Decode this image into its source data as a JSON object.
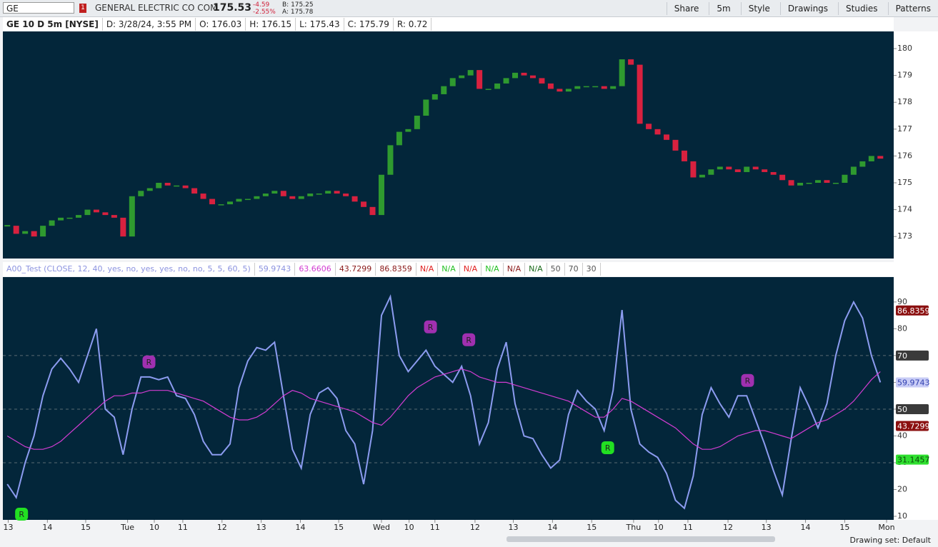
{
  "toolbar": {
    "symbol": "GE",
    "badge": "1",
    "company": "GENERAL ELECTRIC CO COM",
    "last": "175.53",
    "change": "-4.59",
    "change_pct": "-2.55%",
    "bid": "B: 175.25",
    "ask": "A: 175.78",
    "buttons": [
      "Share",
      "5m",
      "Style",
      "Drawings",
      "Studies",
      "Patterns"
    ]
  },
  "info_bar": [
    "GE 10 D 5m [NYSE]",
    "D: 3/28/24, 3:55 PM",
    "O: 176.03",
    "H: 176.15",
    "L: 175.43",
    "C: 175.79",
    "R: 0.72"
  ],
  "study_bar": {
    "name": "A00_Test (CLOSE, 12, 40, yes, no, yes, yes, no, no, 5, 5, 60, 5)",
    "values": [
      {
        "text": "59.9743",
        "color": "#8c93e0"
      },
      {
        "text": "63.6606",
        "color": "#d23cd2"
      },
      {
        "text": "43.7299",
        "color": "#8b1a1a"
      },
      {
        "text": "86.8359",
        "color": "#8b1a1a"
      },
      {
        "text": "N/A",
        "color": "#e02020"
      },
      {
        "text": "N/A",
        "color": "#22c022"
      },
      {
        "text": "N/A",
        "color": "#e02020"
      },
      {
        "text": "N/A",
        "color": "#22c022"
      },
      {
        "text": "N/A",
        "color": "#8b1a1a"
      },
      {
        "text": "N/A",
        "color": "#1a6a1a"
      }
    ]
  },
  "status": "Drawing set: Default",
  "chart_data": [
    {
      "type": "candlestick",
      "up_color": "#2f9a2f",
      "down_color": "#d8213f",
      "close": [
        173.4,
        173.1,
        173.2,
        173.0,
        173.4,
        173.6,
        173.7,
        173.7,
        173.8,
        174.0,
        173.9,
        173.8,
        173.7,
        173.0,
        174.5,
        174.7,
        174.8,
        175.0,
        174.9,
        174.9,
        174.8,
        174.6,
        174.4,
        174.2,
        174.2,
        174.3,
        174.4,
        174.4,
        174.5,
        174.6,
        174.7,
        174.5,
        174.4,
        174.5,
        174.6,
        174.6,
        174.7,
        174.6,
        174.5,
        174.3,
        174.1,
        173.8,
        175.3,
        176.4,
        176.9,
        177.0,
        177.5,
        178.1,
        178.3,
        178.6,
        178.9,
        179.0,
        179.2,
        178.5,
        178.5,
        178.7,
        178.9,
        179.1,
        179.0,
        178.9,
        178.7,
        178.5,
        178.4,
        178.5,
        178.6,
        178.6,
        178.6,
        178.5,
        178.6,
        179.6,
        179.4,
        177.2,
        177.0,
        176.8,
        176.6,
        176.2,
        175.8,
        175.2,
        175.3,
        175.5,
        175.6,
        175.5,
        175.4,
        175.6,
        175.5,
        175.4,
        175.3,
        175.1,
        174.9,
        175.0,
        175.0,
        175.1,
        175.0,
        175.0,
        175.3,
        175.6,
        175.8,
        176.0,
        175.9
      ],
      "ylim": [
        172.18,
        180.64
      ],
      "yticks": [
        173,
        174,
        175,
        176,
        177,
        178,
        179,
        180
      ]
    },
    {
      "type": "line",
      "series": [
        {
          "color": "#8c9cf0",
          "values": [
            22,
            17,
            30,
            40,
            55,
            65,
            69,
            65,
            60,
            70,
            80,
            50,
            47,
            33,
            50,
            62,
            62,
            61,
            62,
            55,
            54,
            48,
            38,
            33,
            33,
            37,
            58,
            68,
            73,
            72,
            75,
            55,
            35,
            28,
            48,
            56,
            58,
            54,
            42,
            37,
            22,
            42,
            85,
            92,
            70,
            64,
            68,
            72,
            66,
            63,
            60,
            66,
            55,
            37,
            45,
            65,
            75,
            52,
            40,
            39,
            33,
            28,
            31,
            48,
            57,
            53,
            50,
            42,
            57,
            87,
            50,
            37,
            34,
            32,
            26,
            16,
            13,
            25,
            48,
            58,
            52,
            47,
            55,
            55,
            46,
            37,
            27,
            18,
            39,
            58,
            51,
            43,
            52,
            70,
            83,
            90,
            84,
            70,
            60
          ]
        },
        {
          "color": "#d23cd2",
          "values": [
            40,
            38,
            36,
            35,
            35,
            36,
            38,
            41,
            44,
            47,
            50,
            53,
            55,
            55,
            56,
            56,
            57,
            57,
            57,
            56,
            55,
            54,
            53,
            51,
            49,
            47,
            46,
            46,
            47,
            49,
            52,
            55,
            57,
            56,
            54,
            53,
            52,
            51,
            50,
            49,
            47,
            45,
            44,
            47,
            51,
            55,
            58,
            60,
            62,
            63,
            64,
            65,
            64,
            62,
            61,
            60,
            60,
            59,
            58,
            57,
            56,
            55,
            54,
            53,
            51,
            49,
            47,
            47,
            50,
            54,
            53,
            51,
            49,
            47,
            45,
            43,
            40,
            37,
            35,
            35,
            36,
            38,
            40,
            41,
            42,
            42,
            41,
            40,
            39,
            41,
            43,
            45,
            46,
            48,
            50,
            53,
            57,
            61,
            64
          ]
        }
      ],
      "levels": [
        50,
        70,
        30
      ],
      "annotations": [
        {
          "x": 2.1,
          "y": 10.8,
          "label": "R",
          "color": "#22e022"
        },
        {
          "x": 16.4,
          "y": 67.6,
          "label": "R",
          "color": "#a030b0"
        },
        {
          "x": 48,
          "y": 80.7,
          "label": "R",
          "color": "#a030b0"
        },
        {
          "x": 52.3,
          "y": 75.9,
          "label": "R",
          "color": "#a030b0"
        },
        {
          "x": 67.9,
          "y": 35.6,
          "label": "R",
          "color": "#22e022"
        },
        {
          "x": 83.6,
          "y": 60.7,
          "label": "R",
          "color": "#a030b0"
        }
      ],
      "right_labels": [
        {
          "value": 86.8359,
          "label": "86.8359",
          "bg": "#8b1010",
          "fg": "#ffffff"
        },
        {
          "value": 70,
          "label": "70",
          "bg": "#3a3a3a",
          "fg": "#ffffff"
        },
        {
          "value": 59.9743,
          "label": "59.9743",
          "bg": "#c8ccf6",
          "fg": "#3040b0"
        },
        {
          "value": 50,
          "label": "50",
          "bg": "#3a3a3a",
          "fg": "#ffffff"
        },
        {
          "value": 43.7299,
          "label": "43.7299",
          "bg": "#8b1010",
          "fg": "#ffffff"
        },
        {
          "value": 31.1457,
          "label": "31.1457",
          "bg": "#30e030",
          "fg": "#0a4a0a"
        }
      ],
      "ylim": [
        8.67,
        99.3
      ],
      "yticks": [
        10,
        20,
        30,
        40,
        50,
        60,
        70,
        80,
        90
      ],
      "xlim": [
        0,
        100
      ],
      "xticks": [
        {
          "value": 0.6,
          "label": "13"
        },
        {
          "value": 5,
          "label": "14"
        },
        {
          "value": 9.3,
          "label": "15"
        },
        {
          "value": 14,
          "label": "Tue"
        },
        {
          "value": 17,
          "label": "10"
        },
        {
          "value": 20.2,
          "label": "11"
        },
        {
          "value": 24.6,
          "label": "12"
        },
        {
          "value": 29,
          "label": "13"
        },
        {
          "value": 33.4,
          "label": "14"
        },
        {
          "value": 37.7,
          "label": "15"
        },
        {
          "value": 42.5,
          "label": "Wed"
        },
        {
          "value": 45.6,
          "label": "10"
        },
        {
          "value": 48.5,
          "label": "11"
        },
        {
          "value": 53,
          "label": "12"
        },
        {
          "value": 57.3,
          "label": "13"
        },
        {
          "value": 61.7,
          "label": "14"
        },
        {
          "value": 66.1,
          "label": "15"
        },
        {
          "value": 70.8,
          "label": "Thu"
        },
        {
          "value": 73.6,
          "label": "10"
        },
        {
          "value": 76.9,
          "label": "11"
        },
        {
          "value": 81.4,
          "label": "12"
        },
        {
          "value": 85.7,
          "label": "13"
        },
        {
          "value": 90.1,
          "label": "14"
        },
        {
          "value": 94.5,
          "label": "15"
        },
        {
          "value": 99.2,
          "label": "Mon"
        }
      ]
    }
  ]
}
